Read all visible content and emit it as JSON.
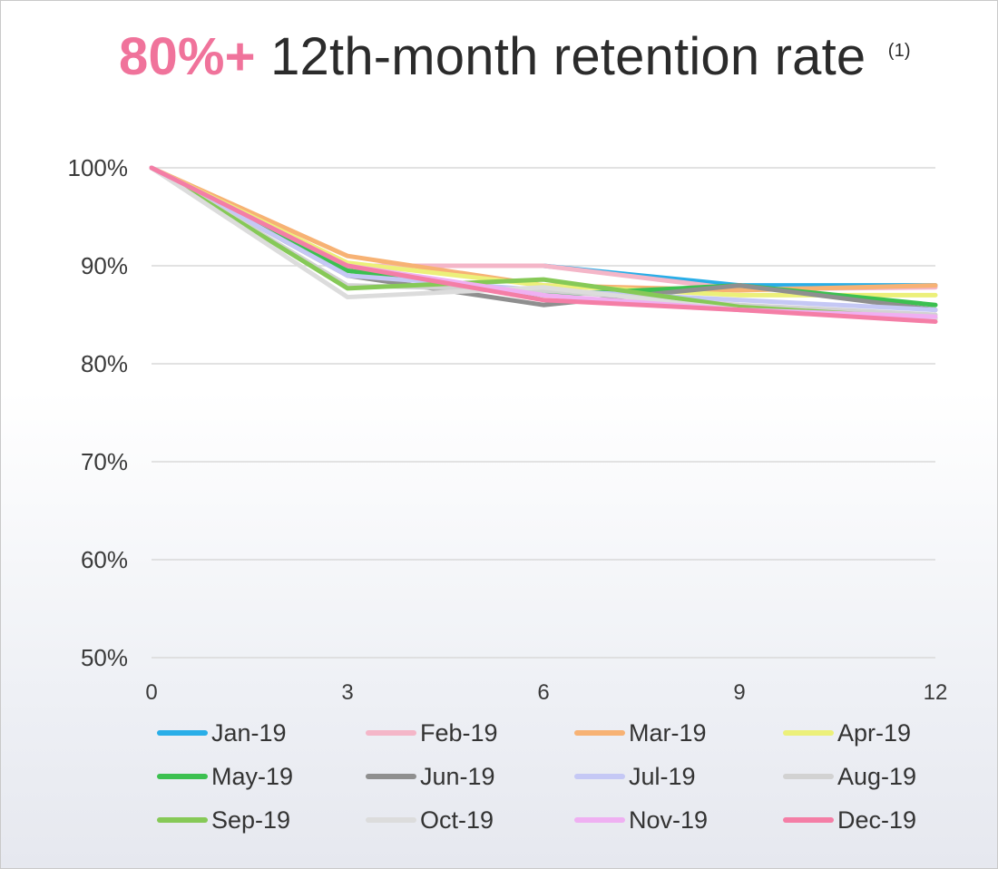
{
  "title": {
    "accent": "80%+",
    "main": "12th-month retention rate",
    "note": "(1)"
  },
  "chart_data": {
    "type": "line",
    "x": [
      0,
      3,
      6,
      9,
      12
    ],
    "xlim": [
      0,
      12
    ],
    "ylim": [
      50,
      100
    ],
    "x_tick_labels": [
      "0",
      "3",
      "6",
      "9",
      "12"
    ],
    "y_tick_labels": [
      "100%",
      "90%",
      "80%",
      "70%",
      "60%",
      "50%"
    ],
    "y_ticks": [
      100,
      90,
      80,
      70,
      60,
      50
    ],
    "grid": "horizontal",
    "legend_position": "bottom",
    "series": [
      {
        "name": "Jan-19",
        "color": "#29aee8",
        "values": [
          100,
          90.0,
          90.0,
          88.0,
          88.0
        ]
      },
      {
        "name": "Feb-19",
        "color": "#f4b6c8",
        "values": [
          100,
          90.0,
          90.0,
          87.6,
          87.8
        ]
      },
      {
        "name": "Mar-19",
        "color": "#f7b274",
        "values": [
          100,
          91.0,
          88.0,
          87.5,
          88.0
        ]
      },
      {
        "name": "Apr-19",
        "color": "#ecf07a",
        "values": [
          100,
          90.3,
          88.0,
          87.0,
          87.0
        ]
      },
      {
        "name": "May-19",
        "color": "#3cc050",
        "values": [
          100,
          89.5,
          87.0,
          88.0,
          86.0
        ]
      },
      {
        "name": "Jun-19",
        "color": "#8f8f8f",
        "values": [
          100,
          89.0,
          86.0,
          88.0,
          85.5
        ]
      },
      {
        "name": "Jul-19",
        "color": "#c5c8f5",
        "values": [
          100,
          89.0,
          87.5,
          86.5,
          85.5
        ]
      },
      {
        "name": "Aug-19",
        "color": "#d2d2d2",
        "values": [
          100,
          88.0,
          87.5,
          86.0,
          85.0
        ]
      },
      {
        "name": "Sep-19",
        "color": "#86c957",
        "values": [
          100,
          87.7,
          88.6,
          85.8,
          84.6
        ]
      },
      {
        "name": "Oct-19",
        "color": "#dcdcdc",
        "values": [
          100,
          86.8,
          87.8,
          85.5,
          84.6
        ]
      },
      {
        "name": "Nov-19",
        "color": "#efb0f2",
        "values": [
          100,
          90.0,
          87.0,
          85.5,
          84.8
        ]
      },
      {
        "name": "Dec-19",
        "color": "#f47ea6",
        "values": [
          100,
          90.0,
          86.5,
          85.5,
          84.3
        ]
      }
    ]
  }
}
